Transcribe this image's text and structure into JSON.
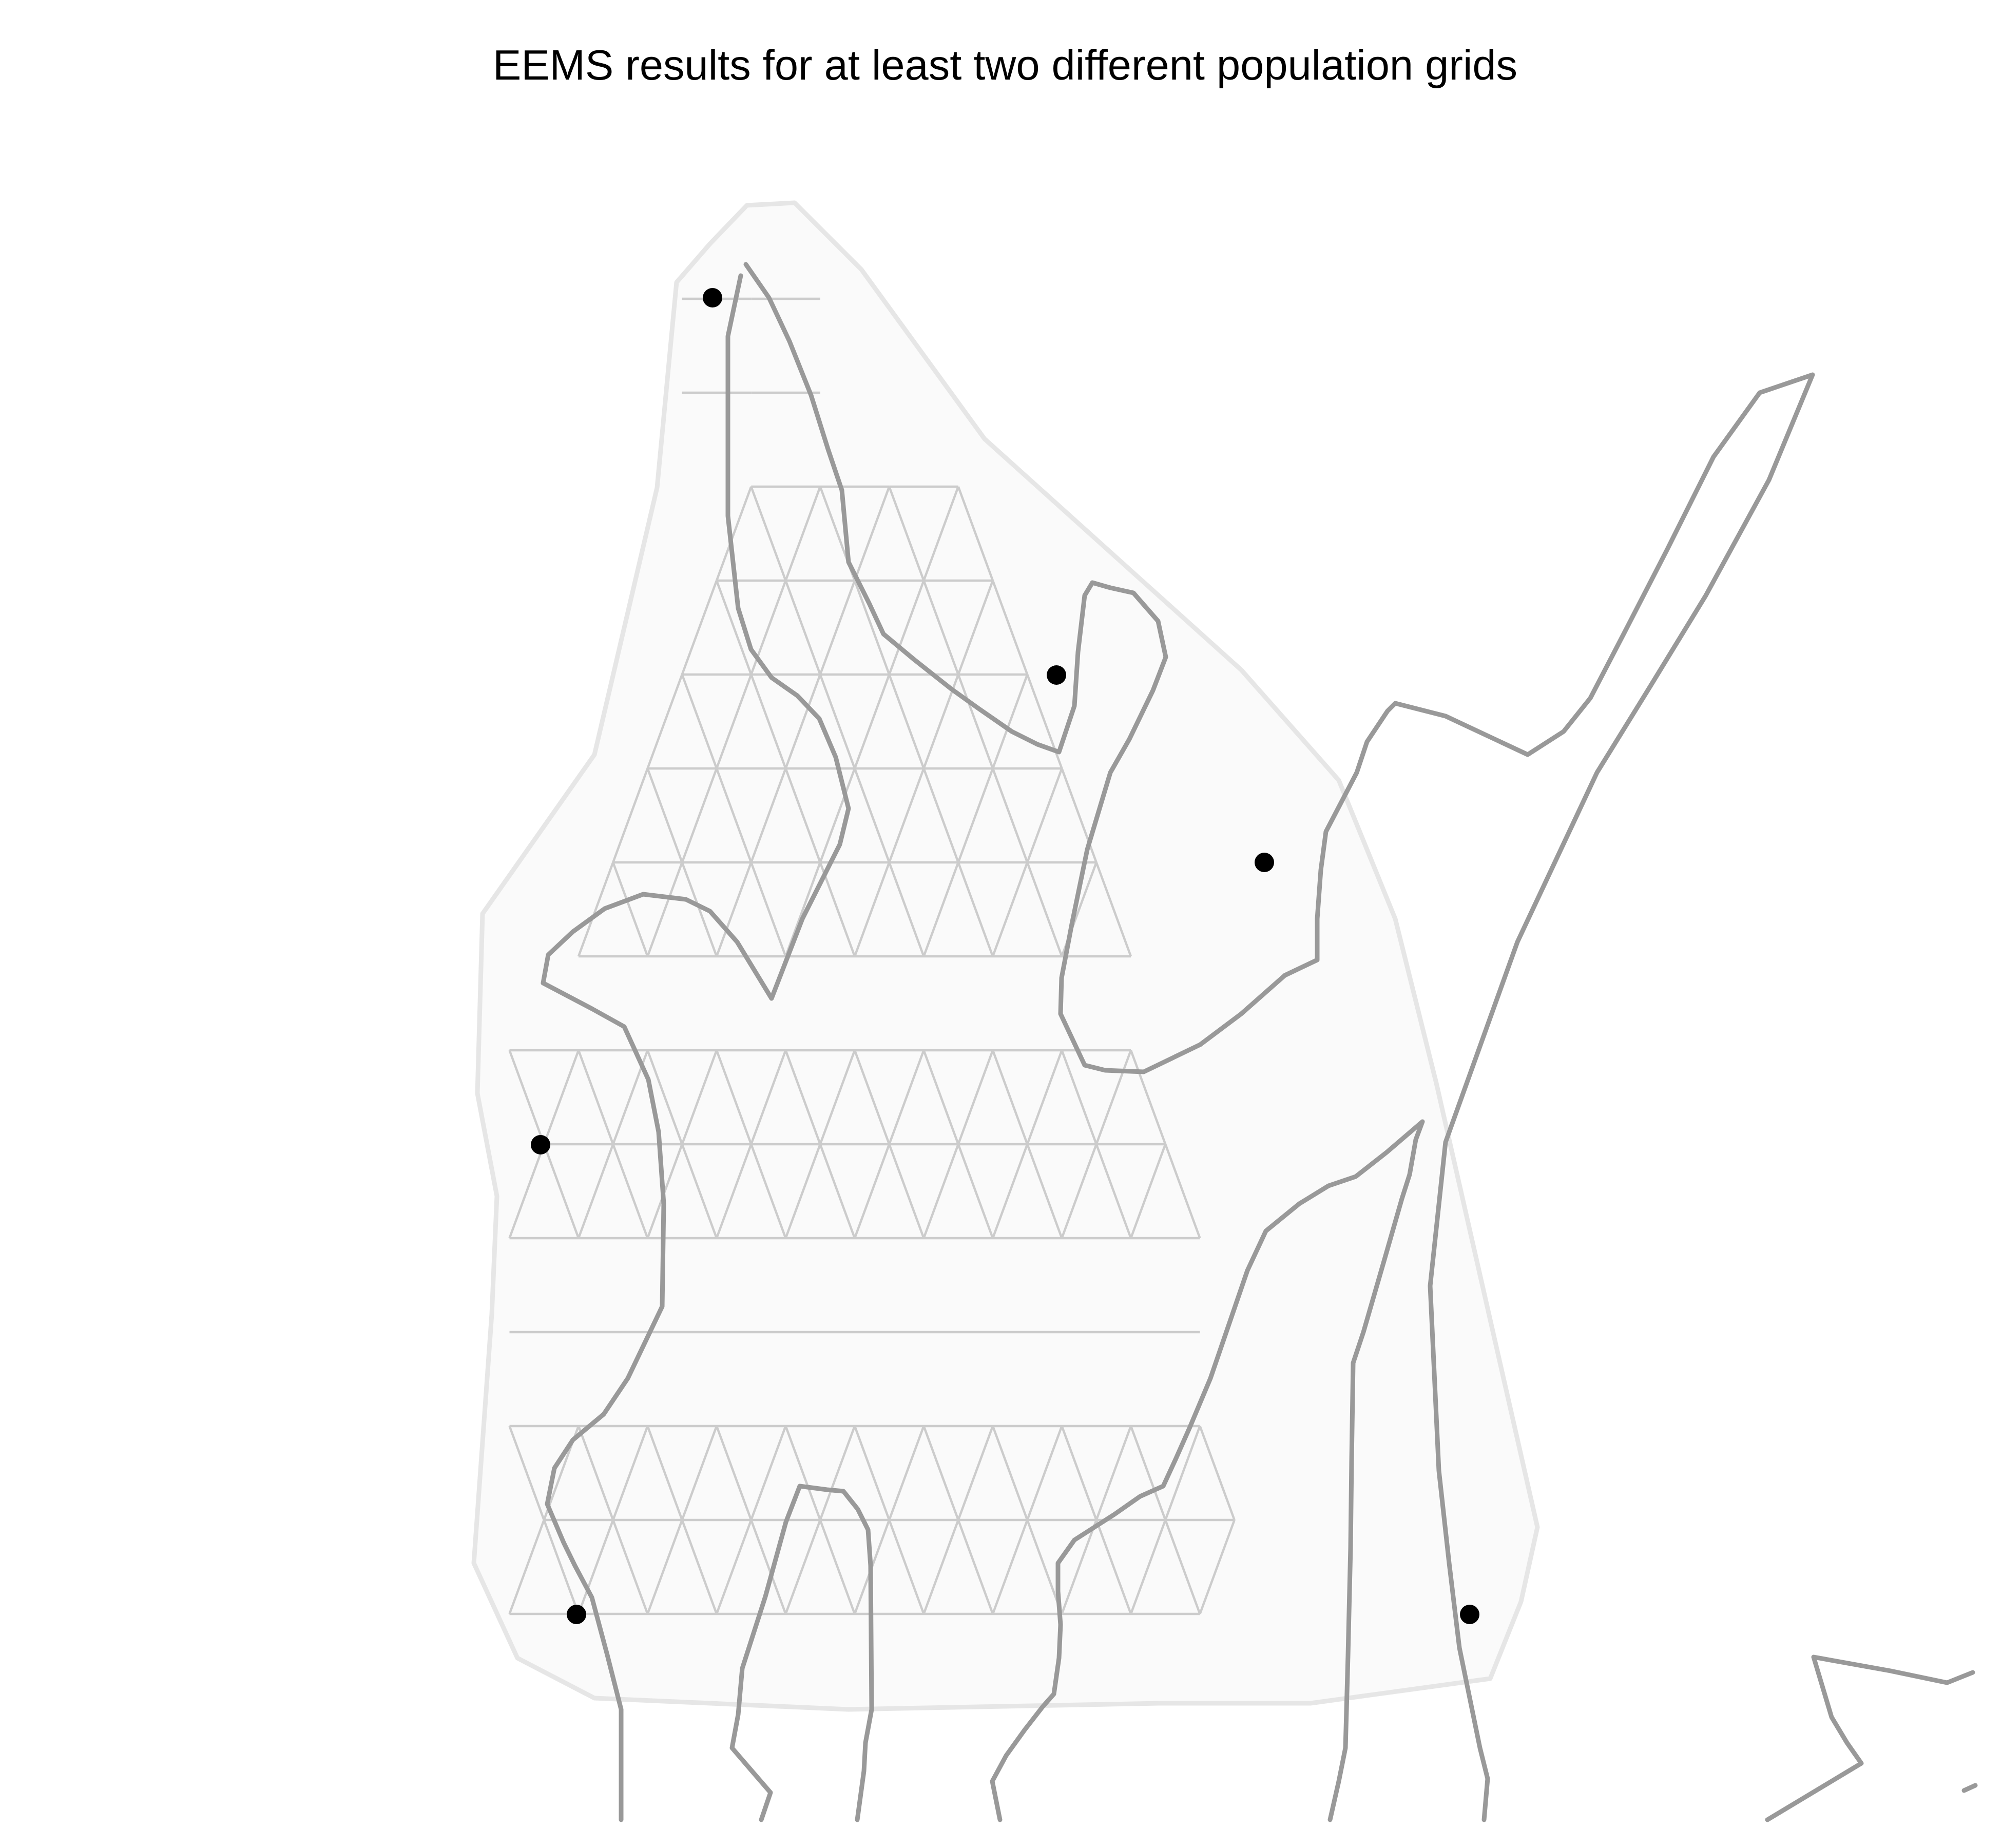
{
  "title": "EEMS results for at least two different population grids",
  "colors": {
    "background": "#ffffff",
    "outline_fill": "#fafafa",
    "outline_stroke": "#e6e6e6",
    "grid_edge": "#cccccc",
    "boundary_line": "#999999",
    "sample_point": "#000000"
  },
  "legend": null
}
